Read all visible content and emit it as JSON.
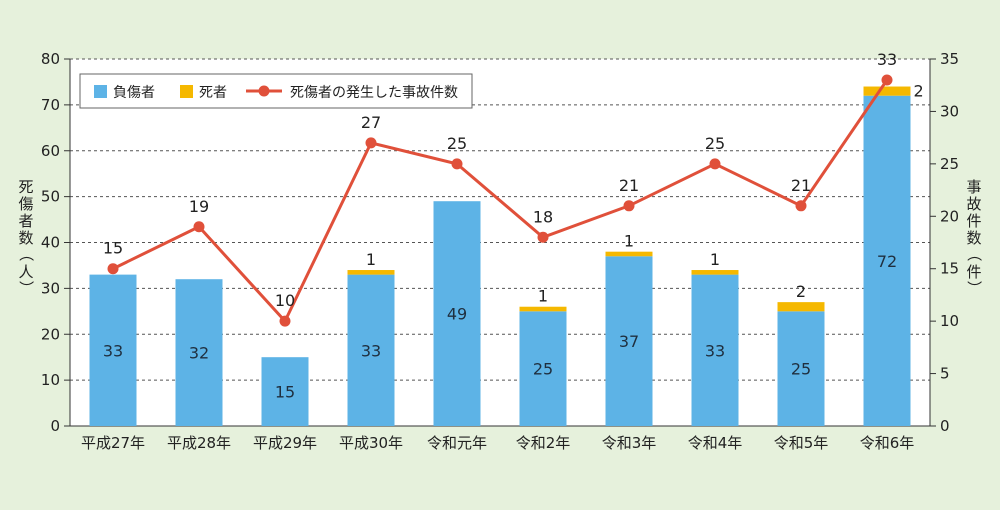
{
  "chart_data": {
    "type": "bar",
    "categories": [
      "平成27年",
      "平成28年",
      "平成29年",
      "平成30年",
      "令和元年",
      "令和2年",
      "令和3年",
      "令和4年",
      "令和5年",
      "令和6年"
    ],
    "series": [
      {
        "name": "負傷者",
        "type": "bar",
        "stack": "persons",
        "axis": "left",
        "values": [
          33,
          32,
          15,
          33,
          49,
          25,
          37,
          33,
          25,
          72
        ]
      },
      {
        "name": "死者",
        "type": "bar",
        "stack": "persons",
        "axis": "left",
        "values": [
          0,
          0,
          0,
          1,
          0,
          1,
          1,
          1,
          2,
          2
        ]
      },
      {
        "name": "死傷者の発生した事故件数",
        "type": "line",
        "axis": "right",
        "values": [
          15,
          19,
          10,
          27,
          25,
          18,
          21,
          25,
          21,
          33
        ]
      }
    ],
    "ylabel_left": "死傷者数（人）",
    "ylabel_right": "事故件数（件）",
    "ylim_left": [
      0,
      80
    ],
    "ylim_right": [
      0,
      35
    ],
    "yticks_left": [
      0,
      10,
      20,
      30,
      40,
      50,
      60,
      70,
      80
    ],
    "yticks_right": [
      0,
      5,
      10,
      15,
      20,
      25,
      30,
      35
    ],
    "grid": "horizontal dashed",
    "legend": "top-left",
    "colors": {
      "injured": "#5db3e6",
      "dead": "#f5b800",
      "line": "#e0503a",
      "background": "#e6f1dc",
      "plot": "#ffffff"
    }
  }
}
